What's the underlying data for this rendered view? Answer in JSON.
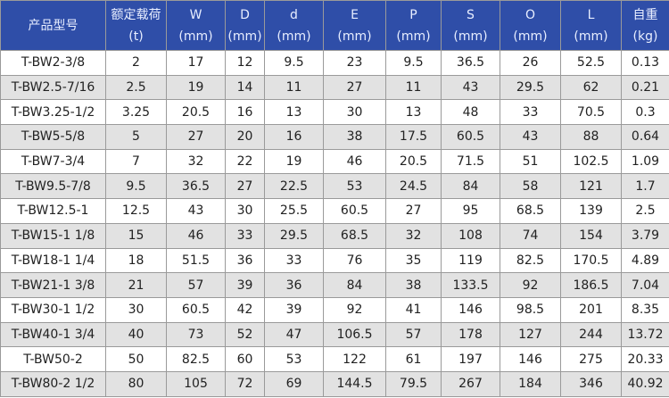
{
  "table": {
    "header": [
      [
        "产品型号"
      ],
      [
        "额定载荷",
        "(t)"
      ],
      [
        "W",
        "(mm)"
      ],
      [
        "D",
        "(mm)"
      ],
      [
        "d",
        "(mm)"
      ],
      [
        "E",
        "(mm)"
      ],
      [
        "P",
        "(mm)"
      ],
      [
        "S",
        "(mm)"
      ],
      [
        "O",
        "(mm)"
      ],
      [
        "L",
        "(mm)"
      ],
      [
        "自重",
        "(kg)"
      ]
    ],
    "rows": [
      [
        "T-BW2-3/8",
        "2",
        "17",
        "12",
        "9.5",
        "23",
        "9.5",
        "36.5",
        "26",
        "52.5",
        "0.13"
      ],
      [
        "T-BW2.5-7/16",
        "2.5",
        "19",
        "14",
        "11",
        "27",
        "11",
        "43",
        "29.5",
        "62",
        "0.21"
      ],
      [
        "T-BW3.25-1/2",
        "3.25",
        "20.5",
        "16",
        "13",
        "30",
        "13",
        "48",
        "33",
        "70.5",
        "0.3"
      ],
      [
        "T-BW5-5/8",
        "5",
        "27",
        "20",
        "16",
        "38",
        "17.5",
        "60.5",
        "43",
        "88",
        "0.64"
      ],
      [
        "T-BW7-3/4",
        "7",
        "32",
        "22",
        "19",
        "46",
        "20.5",
        "71.5",
        "51",
        "102.5",
        "1.09"
      ],
      [
        "T-BW9.5-7/8",
        "9.5",
        "36.5",
        "27",
        "22.5",
        "53",
        "24.5",
        "84",
        "58",
        "121",
        "1.7"
      ],
      [
        "T-BW12.5-1",
        "12.5",
        "43",
        "30",
        "25.5",
        "60.5",
        "27",
        "95",
        "68.5",
        "139",
        "2.5"
      ],
      [
        "T-BW15-1 1/8",
        "15",
        "46",
        "33",
        "29.5",
        "68.5",
        "32",
        "108",
        "74",
        "154",
        "3.79"
      ],
      [
        "T-BW18-1 1/4",
        "18",
        "51.5",
        "36",
        "33",
        "76",
        "35",
        "119",
        "82.5",
        "170.5",
        "4.89"
      ],
      [
        "T-BW21-1 3/8",
        "21",
        "57",
        "39",
        "36",
        "84",
        "38",
        "133.5",
        "92",
        "186.5",
        "7.04"
      ],
      [
        "T-BW30-1 1/2",
        "30",
        "60.5",
        "42",
        "39",
        "92",
        "41",
        "146",
        "98.5",
        "201",
        "8.35"
      ],
      [
        "T-BW40-1 3/4",
        "40",
        "73",
        "52",
        "47",
        "106.5",
        "57",
        "178",
        "127",
        "244",
        "13.72"
      ],
      [
        "T-BW50-2",
        "50",
        "82.5",
        "60",
        "53",
        "122",
        "61",
        "197",
        "146",
        "275",
        "20.33"
      ],
      [
        "T-BW80-2 1/2",
        "80",
        "105",
        "72",
        "69",
        "144.5",
        "79.5",
        "267",
        "184",
        "346",
        "40.92"
      ]
    ]
  }
}
